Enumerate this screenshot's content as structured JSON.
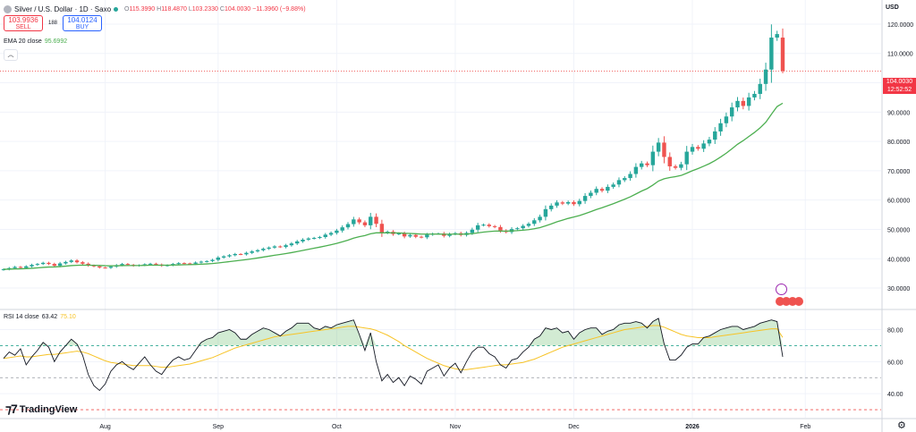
{
  "header": {
    "symbol": "Silver / U.S. Dollar · 1D · Saxo",
    "o_label": "O",
    "o": "115.3990",
    "h_label": "H",
    "h": "118.4870",
    "l_label": "L",
    "l": "103.2330",
    "c_label": "C",
    "c": "104.0030",
    "change": "−11.3960 (−9.88%)"
  },
  "trade": {
    "sell_price": "103.9936",
    "sell_label": "SELL",
    "spread": "188",
    "buy_price": "104.0124",
    "buy_label": "BUY"
  },
  "ema": {
    "label": "EMA 20 close",
    "value": "95.6992"
  },
  "rsi": {
    "label": "RSI 14 close",
    "value": "63.42",
    "ma_value": "75.10"
  },
  "currency": "USD",
  "last_price": {
    "value": "104.0030",
    "time": "12:52:52"
  },
  "logo_text": "TradingView",
  "colors": {
    "up": "#26a69a",
    "down": "#ef5350",
    "ema": "#4caf50",
    "rsi": "#131722",
    "rsi_ma": "#f7c325",
    "level": "#089981",
    "grid": "#f0f3fa"
  },
  "chart_data": [
    {
      "type": "candlestick",
      "title": "Silver / U.S. Dollar · 1D · Saxo",
      "ylim": [
        23,
        127
      ],
      "y_ticks": [
        30,
        40,
        50,
        60,
        70,
        80,
        90,
        100,
        110,
        120
      ],
      "y_tick_labels": [
        "30.0000",
        "40.0000",
        "50.0000",
        "60.0000",
        "70.0000",
        "80.0000",
        "90.0000",
        "100.0000",
        "110.0000",
        "120.0000"
      ],
      "x_tick_labels": [
        "Aug",
        "Sep",
        "Oct",
        "Nov",
        "Dec",
        "2026",
        "Feb"
      ],
      "x_tick_index": [
        18,
        38,
        59,
        80,
        101,
        122,
        142
      ],
      "series": [
        {
          "name": "Silver",
          "close": [
            36.4,
            36.8,
            37.2,
            36.9,
            37.4,
            37.9,
            38.2,
            38.6,
            38.2,
            37.6,
            38.4,
            38.9,
            39.4,
            38.8,
            38.3,
            37.7,
            37.4,
            37.0,
            36.9,
            37.3,
            37.8,
            38.2,
            37.9,
            37.6,
            37.8,
            38.1,
            38.3,
            38.0,
            37.6,
            37.8,
            38.2,
            38.5,
            38.4,
            38.3,
            38.7,
            39.0,
            39.2,
            39.6,
            40.4,
            40.8,
            41.2,
            41.6,
            41.5,
            42.0,
            42.5,
            42.9,
            43.4,
            43.8,
            44.2,
            44.0,
            44.6,
            45.2,
            45.9,
            46.5,
            46.9,
            47.1,
            47.4,
            48.2,
            48.8,
            49.6,
            50.7,
            51.8,
            53.4,
            52.4,
            51.4,
            54.3,
            51.9,
            48.8,
            49.2,
            48.4,
            48.6,
            47.6,
            48.1,
            47.5,
            47.3,
            48.2,
            48.5,
            48.6,
            47.8,
            48.4,
            48.7,
            48.1,
            48.8,
            49.9,
            51.4,
            51.6,
            51.1,
            50.8,
            49.6,
            49.1,
            50.1,
            50.4,
            51.2,
            51.9,
            53.1,
            54.3,
            56.9,
            58.1,
            59.2,
            58.8,
            59.3,
            58.6,
            59.7,
            61.4,
            62.5,
            63.8,
            63.2,
            64.5,
            65.3,
            66.8,
            67.5,
            68.9,
            71.3,
            72.5,
            71.9,
            76.5,
            79.6,
            74.7,
            71.5,
            71.0,
            72.2,
            76.5,
            78.1,
            77.5,
            79.3,
            80.6,
            83.4,
            86.2,
            88.5,
            91.6,
            93.8,
            92.1,
            95.0,
            96.2,
            99.6,
            104.5,
            115.4,
            116.6,
            104.0
          ]
        }
      ]
    },
    {
      "type": "line",
      "title": "RSI 14 close",
      "ylim": [
        25,
        92
      ],
      "y_ticks": [
        40,
        60,
        80
      ],
      "y_tick_labels": [
        "40.00",
        "60.00",
        "80.00"
      ],
      "levels": [
        70,
        50,
        30
      ],
      "series": [
        {
          "name": "RSI",
          "values": [
            62,
            66,
            64,
            68,
            58,
            63,
            67,
            72,
            69,
            60,
            66,
            70,
            74,
            71,
            64,
            52,
            45,
            42,
            46,
            54,
            58,
            60,
            57,
            55,
            59,
            63,
            58,
            54,
            52,
            57,
            61,
            63,
            61,
            62,
            67,
            72,
            74,
            75,
            78,
            79,
            80,
            78,
            74,
            74,
            77,
            79,
            81,
            80,
            78,
            76,
            79,
            81,
            84,
            84,
            84,
            81,
            80,
            82,
            81,
            83,
            84,
            85,
            86,
            77,
            67,
            78,
            60,
            48,
            52,
            47,
            50,
            45,
            51,
            49,
            46,
            54,
            56,
            58,
            51,
            56,
            59,
            53,
            60,
            66,
            69,
            69,
            65,
            63,
            58,
            56,
            61,
            62,
            66,
            69,
            74,
            76,
            81,
            80,
            81,
            78,
            79,
            74,
            78,
            80,
            81,
            81,
            77,
            79,
            80,
            83,
            84,
            84,
            85,
            84,
            81,
            85,
            87,
            71,
            61,
            61,
            64,
            69,
            71,
            71,
            75,
            76,
            78,
            80,
            81,
            82,
            82,
            80,
            81,
            82,
            84,
            85,
            86,
            85,
            63
          ]
        },
        {
          "name": "RSI-based MA",
          "values": [
            62,
            62.5,
            63,
            63.5,
            63,
            63,
            63.5,
            64,
            64.5,
            64.5,
            65,
            65.5,
            66,
            66.5,
            66,
            65,
            63.5,
            62,
            60.5,
            59.5,
            59,
            58.5,
            58,
            57.5,
            57.5,
            57.5,
            57.5,
            57,
            56.5,
            56.5,
            57,
            57.5,
            58,
            58.5,
            59.5,
            60.5,
            61.5,
            62.5,
            64,
            65.5,
            67,
            68.5,
            69.5,
            70.5,
            71.5,
            72.5,
            73.5,
            74.5,
            75.5,
            76,
            76.5,
            77,
            77.5,
            78,
            78.5,
            79,
            79.5,
            80,
            80.5,
            81,
            81.5,
            82,
            82,
            81.5,
            81,
            80.5,
            79.5,
            78,
            76.5,
            74.5,
            72.5,
            70,
            68,
            66,
            64,
            62,
            60.5,
            59,
            57.5,
            56.5,
            55.5,
            55,
            55,
            55.5,
            56,
            56.5,
            57,
            57.5,
            58,
            58,
            58.5,
            59,
            59.5,
            60.5,
            61.5,
            63,
            64.5,
            66,
            67.5,
            69,
            70,
            71,
            72,
            73,
            74,
            75,
            76,
            77,
            78,
            79,
            80,
            80.5,
            81,
            81.5,
            82,
            82.5,
            82.5,
            81.5,
            80,
            78.5,
            77,
            76,
            75.5,
            75,
            75,
            75,
            75.5,
            76,
            76.5,
            77,
            77.5,
            78,
            78.5,
            79,
            79.5,
            80,
            80.5,
            80.5,
            75.1
          ]
        }
      ]
    }
  ]
}
